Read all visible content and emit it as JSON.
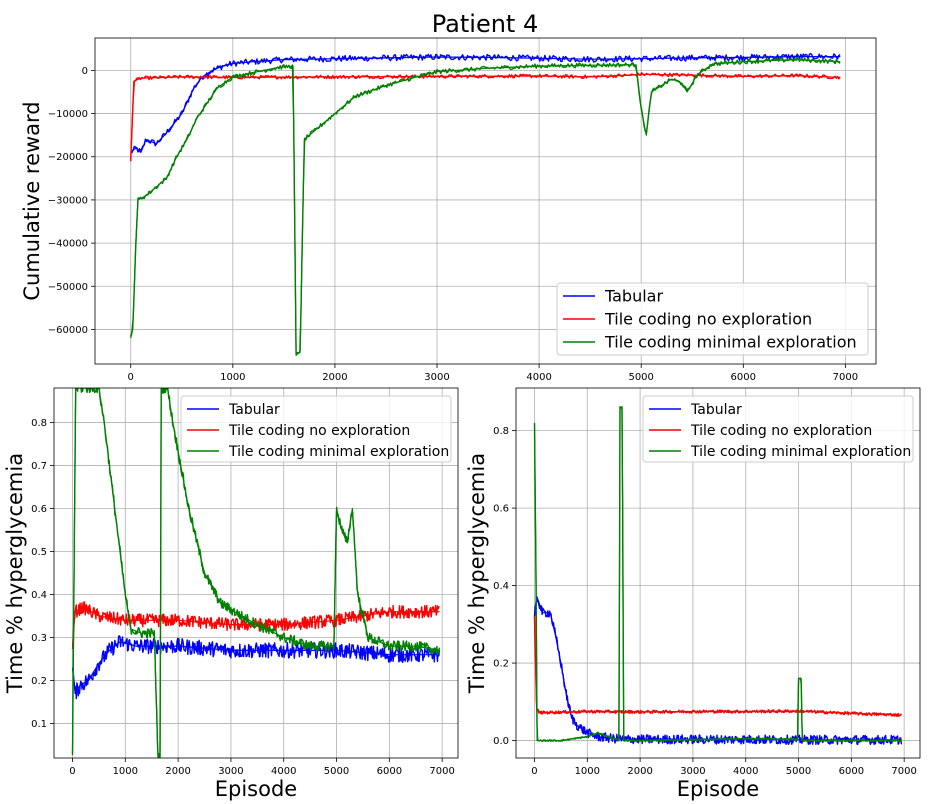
{
  "colors": {
    "tabular": "#0000ff",
    "no_exploration": "#ff0000",
    "minimal_exploration": "#008000"
  },
  "chart_data": [
    {
      "id": "top",
      "type": "line",
      "title": "Patient 4",
      "xlabel": "",
      "ylabel": "Cumulative reward",
      "xlim": [
        -350,
        7300
      ],
      "ylim": [
        -68000,
        7500
      ],
      "xticks": [
        0,
        1000,
        2000,
        3000,
        4000,
        5000,
        6000,
        7000
      ],
      "yticks": [
        0,
        -10000,
        -20000,
        -30000,
        -40000,
        -50000,
        -60000
      ],
      "xtick_labels": [
        "0",
        "1000",
        "2000",
        "3000",
        "4000",
        "5000",
        "6000",
        "7000"
      ],
      "ytick_labels": [
        "0",
        "−10000",
        "−20000",
        "−30000",
        "−40000",
        "−50000",
        "−60000"
      ],
      "grid": true,
      "legend_position": "lower-right",
      "series": [
        {
          "name": "Tabular",
          "color": "#0000ff",
          "noise": 700,
          "points": [
            [
              0,
              -19000
            ],
            [
              50,
              -18000
            ],
            [
              100,
              -19000
            ],
            [
              150,
              -16000
            ],
            [
              250,
              -17000
            ],
            [
              330,
              -15000
            ],
            [
              400,
              -13000
            ],
            [
              500,
              -10000
            ],
            [
              560,
              -7000
            ],
            [
              620,
              -4000
            ],
            [
              700,
              -1500
            ],
            [
              800,
              0
            ],
            [
              900,
              1000
            ],
            [
              1000,
              1600
            ],
            [
              1200,
              2000
            ],
            [
              1500,
              2500
            ],
            [
              2000,
              2700
            ],
            [
              2500,
              2900
            ],
            [
              3000,
              3100
            ],
            [
              3500,
              3000
            ],
            [
              4000,
              2800
            ],
            [
              4500,
              2600
            ],
            [
              5000,
              2700
            ],
            [
              5500,
              2900
            ],
            [
              6000,
              3000
            ],
            [
              6500,
              3200
            ],
            [
              6950,
              3200
            ]
          ]
        },
        {
          "name": "Tile coding no exploration",
          "color": "#ff0000",
          "noise": 400,
          "points": [
            [
              0,
              -21000
            ],
            [
              30,
              -2500
            ],
            [
              100,
              -1800
            ],
            [
              500,
              -1500
            ],
            [
              1000,
              -1600
            ],
            [
              2000,
              -1500
            ],
            [
              3000,
              -1400
            ],
            [
              4000,
              -1300
            ],
            [
              4500,
              -1500
            ],
            [
              4900,
              -1100
            ],
            [
              5000,
              -900
            ],
            [
              5500,
              -1100
            ],
            [
              6000,
              -1400
            ],
            [
              6500,
              -1200
            ],
            [
              6950,
              -1600
            ]
          ]
        },
        {
          "name": "Tile coding minimal exploration",
          "color": "#008000",
          "noise": 500,
          "points": [
            [
              0,
              -62000
            ],
            [
              20,
              -60000
            ],
            [
              50,
              -40000
            ],
            [
              70,
              -30000
            ],
            [
              150,
              -29000
            ],
            [
              250,
              -27000
            ],
            [
              350,
              -25000
            ],
            [
              450,
              -20000
            ],
            [
              550,
              -16000
            ],
            [
              650,
              -11000
            ],
            [
              750,
              -7500
            ],
            [
              850,
              -4000
            ],
            [
              1000,
              -1500
            ],
            [
              1200,
              -500
            ],
            [
              1450,
              700
            ],
            [
              1590,
              1000
            ],
            [
              1620,
              -66000
            ],
            [
              1660,
              -65000
            ],
            [
              1700,
              -16000
            ],
            [
              1850,
              -13000
            ],
            [
              2000,
              -10000
            ],
            [
              2200,
              -6000
            ],
            [
              2500,
              -3500
            ],
            [
              2800,
              -1500
            ],
            [
              3000,
              -300
            ],
            [
              3500,
              500
            ],
            [
              4000,
              1000
            ],
            [
              4500,
              1200
            ],
            [
              4950,
              1300
            ],
            [
              5000,
              -9000
            ],
            [
              5050,
              -15000
            ],
            [
              5100,
              -5000
            ],
            [
              5300,
              -2000
            ],
            [
              5400,
              -3000
            ],
            [
              5450,
              -5000
            ],
            [
              5550,
              -1000
            ],
            [
              5700,
              1500
            ],
            [
              6000,
              2000
            ],
            [
              6500,
              2500
            ],
            [
              6950,
              2000
            ]
          ]
        }
      ]
    },
    {
      "id": "bottom-left",
      "type": "line",
      "title": "",
      "xlabel": "Episode",
      "ylabel": "Time % hyperglycemia",
      "xlim": [
        -350,
        7300
      ],
      "ylim": [
        0.02,
        0.88
      ],
      "xticks": [
        0,
        1000,
        2000,
        3000,
        4000,
        5000,
        6000,
        7000
      ],
      "yticks": [
        0.1,
        0.2,
        0.3,
        0.4,
        0.5,
        0.6,
        0.7,
        0.8
      ],
      "xtick_labels": [
        "0",
        "1000",
        "2000",
        "3000",
        "4000",
        "5000",
        "6000",
        "7000"
      ],
      "ytick_labels": [
        "0.1",
        "0.2",
        "0.3",
        "0.4",
        "0.5",
        "0.6",
        "0.7",
        "0.8"
      ],
      "grid": true,
      "legend_position": "upper-right",
      "series": [
        {
          "name": "Tabular",
          "color": "#0000ff",
          "noise": 0.018,
          "points": [
            [
              0,
              0.23
            ],
            [
              50,
              0.17
            ],
            [
              150,
              0.19
            ],
            [
              300,
              0.2
            ],
            [
              500,
              0.24
            ],
            [
              700,
              0.27
            ],
            [
              900,
              0.29
            ],
            [
              1200,
              0.28
            ],
            [
              2000,
              0.28
            ],
            [
              3000,
              0.27
            ],
            [
              4000,
              0.27
            ],
            [
              5000,
              0.27
            ],
            [
              6000,
              0.26
            ],
            [
              6950,
              0.26
            ]
          ]
        },
        {
          "name": "Tile coding no exploration",
          "color": "#ff0000",
          "noise": 0.015,
          "points": [
            [
              0,
              0.28
            ],
            [
              50,
              0.36
            ],
            [
              200,
              0.37
            ],
            [
              500,
              0.35
            ],
            [
              1000,
              0.34
            ],
            [
              2000,
              0.34
            ],
            [
              3000,
              0.33
            ],
            [
              4000,
              0.33
            ],
            [
              5000,
              0.34
            ],
            [
              6000,
              0.36
            ],
            [
              6950,
              0.36
            ]
          ]
        },
        {
          "name": "Tile coding minimal exploration",
          "color": "#008000",
          "noise": 0.012,
          "points": [
            [
              0,
              0.03
            ],
            [
              40,
              0.6
            ],
            [
              60,
              0.88
            ],
            [
              200,
              0.88
            ],
            [
              500,
              0.88
            ],
            [
              600,
              0.8
            ],
            [
              800,
              0.6
            ],
            [
              1000,
              0.4
            ],
            [
              1100,
              0.32
            ],
            [
              1300,
              0.31
            ],
            [
              1550,
              0.31
            ],
            [
              1620,
              0.02
            ],
            [
              1660,
              0.02
            ],
            [
              1680,
              0.88
            ],
            [
              1800,
              0.88
            ],
            [
              1900,
              0.8
            ],
            [
              2200,
              0.6
            ],
            [
              2500,
              0.45
            ],
            [
              2800,
              0.38
            ],
            [
              3200,
              0.35
            ],
            [
              3500,
              0.33
            ],
            [
              4000,
              0.3
            ],
            [
              4500,
              0.28
            ],
            [
              4950,
              0.28
            ],
            [
              5000,
              0.6
            ],
            [
              5100,
              0.55
            ],
            [
              5200,
              0.52
            ],
            [
              5300,
              0.6
            ],
            [
              5400,
              0.4
            ],
            [
              5600,
              0.3
            ],
            [
              6000,
              0.28
            ],
            [
              6500,
              0.28
            ],
            [
              6950,
              0.27
            ]
          ]
        }
      ]
    },
    {
      "id": "bottom-right",
      "type": "line",
      "title": "",
      "xlabel": "Episode",
      "ylabel": "Time % hyperglycemia",
      "xlim": [
        -350,
        7300
      ],
      "ylim": [
        -0.045,
        0.91
      ],
      "xticks": [
        0,
        1000,
        2000,
        3000,
        4000,
        5000,
        6000,
        7000
      ],
      "yticks": [
        0.0,
        0.2,
        0.4,
        0.6,
        0.8
      ],
      "xtick_labels": [
        "0",
        "1000",
        "2000",
        "3000",
        "4000",
        "5000",
        "6000",
        "7000"
      ],
      "ytick_labels": [
        "0.0",
        "0.2",
        "0.4",
        "0.6",
        "0.8"
      ],
      "grid": true,
      "legend_position": "upper-right",
      "series": [
        {
          "name": "Tabular",
          "color": "#0000ff",
          "noise": 0.012,
          "points": [
            [
              0,
              0.32
            ],
            [
              50,
              0.37
            ],
            [
              150,
              0.33
            ],
            [
              300,
              0.33
            ],
            [
              400,
              0.27
            ],
            [
              500,
              0.2
            ],
            [
              600,
              0.12
            ],
            [
              700,
              0.06
            ],
            [
              800,
              0.04
            ],
            [
              1000,
              0.02
            ],
            [
              1200,
              0.01
            ],
            [
              1500,
              0.005
            ],
            [
              2000,
              0.003
            ],
            [
              3000,
              0.003
            ],
            [
              4000,
              0.003
            ],
            [
              5000,
              0.002
            ],
            [
              6000,
              0.002
            ],
            [
              6950,
              0.002
            ]
          ]
        },
        {
          "name": "Tile coding no exploration",
          "color": "#ff0000",
          "noise": 0.004,
          "points": [
            [
              0,
              0.32
            ],
            [
              40,
              0.08
            ],
            [
              100,
              0.072
            ],
            [
              1000,
              0.075
            ],
            [
              2000,
              0.074
            ],
            [
              3000,
              0.075
            ],
            [
              4000,
              0.075
            ],
            [
              5000,
              0.076
            ],
            [
              6000,
              0.07
            ],
            [
              6950,
              0.066
            ]
          ]
        },
        {
          "name": "Tile coding minimal exploration",
          "color": "#008000",
          "noise": 0.002,
          "points": [
            [
              0,
              0.82
            ],
            [
              30,
              0.4
            ],
            [
              50,
              0.0
            ],
            [
              500,
              0.0
            ],
            [
              1000,
              0.01
            ],
            [
              1200,
              0.02
            ],
            [
              1500,
              0.005
            ],
            [
              1600,
              0.0
            ],
            [
              1620,
              0.86
            ],
            [
              1660,
              0.86
            ],
            [
              1690,
              0.0
            ],
            [
              2000,
              0.0
            ],
            [
              3000,
              0.002
            ],
            [
              4000,
              0.005
            ],
            [
              4980,
              0.003
            ],
            [
              5000,
              0.16
            ],
            [
              5050,
              0.16
            ],
            [
              5070,
              0.0
            ],
            [
              6000,
              0.0
            ],
            [
              6950,
              0.0
            ]
          ]
        }
      ]
    }
  ]
}
